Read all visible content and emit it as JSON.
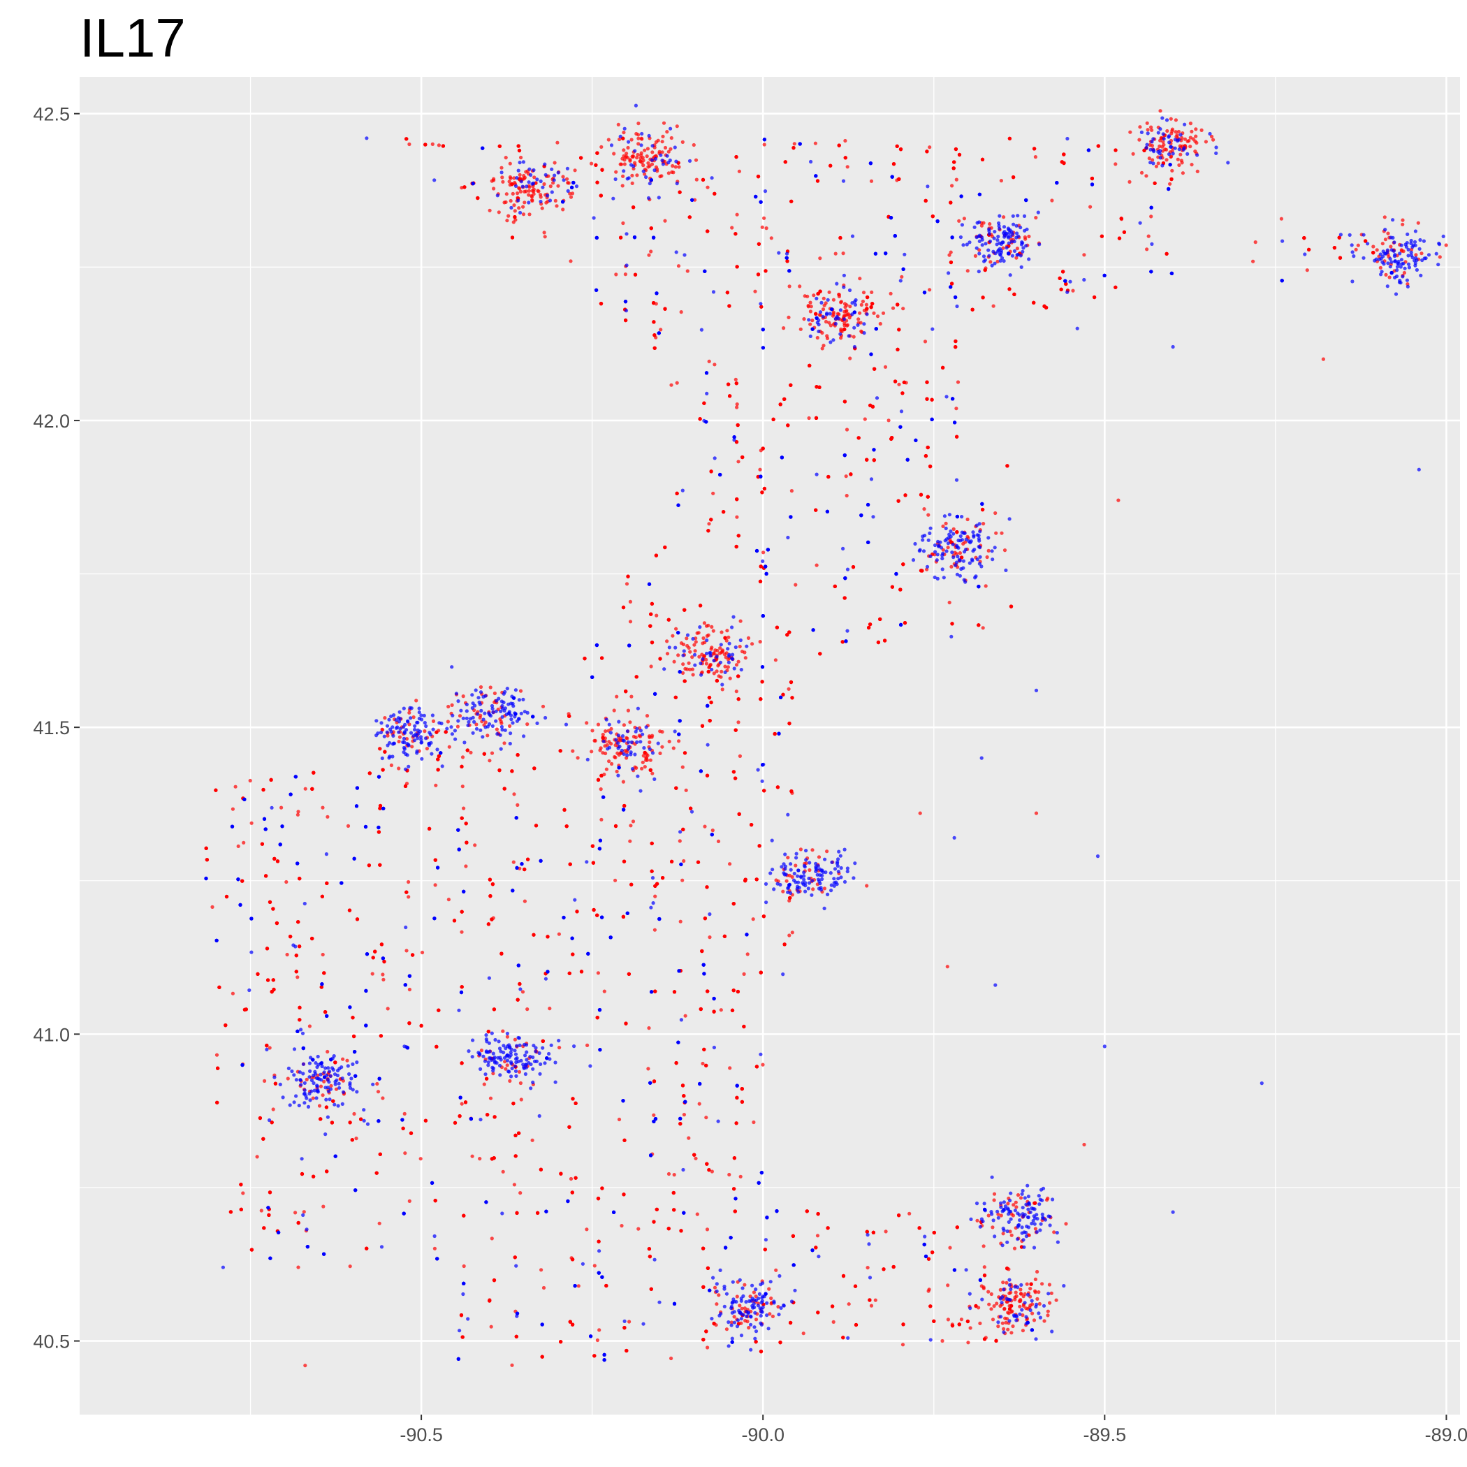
{
  "chart_data": {
    "type": "scatter",
    "title": "IL17",
    "xlabel": "",
    "ylabel": "",
    "xlim": [
      -91.0,
      -88.98
    ],
    "ylim": [
      40.38,
      42.56
    ],
    "x_ticks": [
      -90.5,
      -90.0,
      -89.5,
      -89.0
    ],
    "x_tick_labels": [
      "-90.5",
      "-90.0",
      "-89.5",
      "-89.0"
    ],
    "y_ticks": [
      40.5,
      41.0,
      41.5,
      42.0,
      42.5
    ],
    "y_tick_labels": [
      "40.5",
      "41.0",
      "41.5",
      "42.0",
      "42.5"
    ],
    "grid": true,
    "legend": "none",
    "colors": {
      "panel": "#ebebeb",
      "grid": "#ffffff",
      "red_points": "#ff0000",
      "blue_points": "#0000ff"
    },
    "series_color_order": [
      "red",
      "blue"
    ],
    "region_polygon": [
      [
        -90.53,
        42.46
      ],
      [
        -89.4,
        42.46
      ],
      [
        -89.4,
        42.22
      ],
      [
        -89.08,
        42.22
      ],
      [
        -89.08,
        42.32
      ],
      [
        -89.25,
        42.33
      ],
      [
        -89.37,
        42.22
      ],
      [
        -89.4,
        42.22
      ],
      [
        -89.7,
        42.16
      ],
      [
        -89.7,
        41.93
      ],
      [
        -89.63,
        41.93
      ],
      [
        -89.63,
        41.65
      ],
      [
        -89.9,
        41.62
      ],
      [
        -89.95,
        41.5
      ],
      [
        -89.95,
        41.12
      ],
      [
        -90.0,
        41.05
      ],
      [
        -90.0,
        40.72
      ],
      [
        -89.57,
        40.72
      ],
      [
        -89.62,
        40.76
      ],
      [
        -89.57,
        40.63
      ],
      [
        -89.6,
        40.52
      ],
      [
        -89.7,
        40.48
      ],
      [
        -90.0,
        40.48
      ],
      [
        -90.45,
        40.45
      ],
      [
        -90.45,
        40.62
      ],
      [
        -90.8,
        40.62
      ],
      [
        -90.8,
        41.1
      ],
      [
        -90.82,
        41.1
      ],
      [
        -90.82,
        41.4
      ],
      [
        -90.6,
        41.45
      ],
      [
        -90.4,
        41.52
      ],
      [
        -90.25,
        41.65
      ],
      [
        -90.17,
        41.85
      ],
      [
        -90.1,
        42.0
      ],
      [
        -90.25,
        42.2
      ],
      [
        -90.45,
        42.33
      ]
    ],
    "dense_clusters": [
      {
        "x": -89.07,
        "y": 42.27,
        "color": "blue"
      },
      {
        "x": -89.65,
        "y": 42.29,
        "color": "blue"
      },
      {
        "x": -89.72,
        "y": 41.79,
        "color": "blue"
      },
      {
        "x": -89.93,
        "y": 41.26,
        "color": "blue"
      },
      {
        "x": -90.37,
        "y": 40.96,
        "color": "blue"
      },
      {
        "x": -89.63,
        "y": 40.7,
        "color": "blue"
      },
      {
        "x": -89.63,
        "y": 40.56,
        "color": "red"
      },
      {
        "x": -90.02,
        "y": 40.56,
        "color": "blue"
      },
      {
        "x": -90.52,
        "y": 41.49,
        "color": "blue"
      },
      {
        "x": -90.4,
        "y": 41.52,
        "color": "blue"
      },
      {
        "x": -90.34,
        "y": 42.38,
        "color": "red"
      },
      {
        "x": -90.17,
        "y": 42.43,
        "color": "red"
      },
      {
        "x": -89.89,
        "y": 42.17,
        "color": "red"
      },
      {
        "x": -89.4,
        "y": 42.45,
        "color": "red"
      },
      {
        "x": -90.08,
        "y": 41.62,
        "color": "red"
      },
      {
        "x": -90.65,
        "y": 40.92,
        "color": "blue"
      },
      {
        "x": -90.2,
        "y": 41.47,
        "color": "red"
      }
    ],
    "outliers": [
      {
        "x": -90.58,
        "y": 42.46,
        "color": "blue"
      },
      {
        "x": -89.04,
        "y": 41.92,
        "color": "blue"
      },
      {
        "x": -89.48,
        "y": 41.87,
        "color": "red"
      },
      {
        "x": -89.68,
        "y": 41.45,
        "color": "blue"
      },
      {
        "x": -89.6,
        "y": 41.36,
        "color": "red"
      },
      {
        "x": -89.77,
        "y": 41.36,
        "color": "red"
      },
      {
        "x": -89.51,
        "y": 41.29,
        "color": "blue"
      },
      {
        "x": -89.72,
        "y": 41.32,
        "color": "blue"
      },
      {
        "x": -89.73,
        "y": 41.11,
        "color": "red"
      },
      {
        "x": -89.66,
        "y": 41.08,
        "color": "blue"
      },
      {
        "x": -89.5,
        "y": 40.98,
        "color": "blue"
      },
      {
        "x": -89.27,
        "y": 40.92,
        "color": "blue"
      },
      {
        "x": -89.4,
        "y": 40.71,
        "color": "blue"
      },
      {
        "x": -89.53,
        "y": 40.82,
        "color": "red"
      },
      {
        "x": -90.79,
        "y": 40.62,
        "color": "blue"
      },
      {
        "x": -90.67,
        "y": 40.46,
        "color": "red"
      },
      {
        "x": -89.4,
        "y": 42.12,
        "color": "blue"
      },
      {
        "x": -89.18,
        "y": 42.1,
        "color": "red"
      },
      {
        "x": -89.54,
        "y": 42.15,
        "color": "blue"
      },
      {
        "x": -89.6,
        "y": 41.56,
        "color": "blue"
      }
    ]
  }
}
